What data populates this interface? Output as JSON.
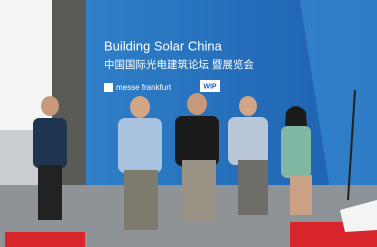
{
  "banner": {
    "title": "Building Solar China",
    "subtitle": "中国国际光电建筑论坛 暨展览会",
    "sponsor": "messe frankfurt",
    "logo": "WIP"
  }
}
